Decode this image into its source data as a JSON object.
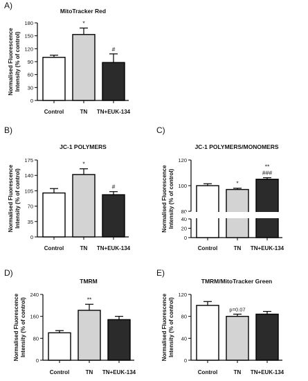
{
  "chart_data": [
    {
      "panel_label": "A)",
      "title": "MitoTracker Red",
      "type": "bar",
      "ylabel_lines": [
        "Normalised Fluorescence",
        "Intensity (% of control)"
      ],
      "categories": [
        "Control",
        "TN",
        "TN+EUK-134"
      ],
      "values": [
        100,
        153,
        88
      ],
      "errors": [
        5,
        15,
        20
      ],
      "annotations": [
        "",
        "*",
        "#"
      ],
      "ylim": [
        0,
        180
      ],
      "yticks": [
        0,
        30,
        60,
        90,
        120,
        150,
        180
      ],
      "colors": [
        "#ffffff",
        "#d3d3d3",
        "#2b2b2b"
      ]
    },
    {
      "panel_label": "B)",
      "title": "JC-1 POLYMERS",
      "type": "bar",
      "ylabel_lines": [
        "Normalised Fluorescence",
        "Intensity (% of control)"
      ],
      "categories": [
        "Control",
        "TN",
        "TN+EUK-134"
      ],
      "values": [
        100,
        142,
        96
      ],
      "errors": [
        10,
        13,
        7
      ],
      "annotations": [
        "",
        "*",
        "#"
      ],
      "ylim": [
        0,
        175
      ],
      "yticks": [
        0,
        35,
        70,
        105,
        140,
        175
      ],
      "colors": [
        "#ffffff",
        "#d3d3d3",
        "#2b2b2b"
      ]
    },
    {
      "panel_label": "C)",
      "title": "JC-1 POLYMERS/MONOMERS",
      "type": "bar",
      "ylabel_lines": [
        "Normalised Fluorescence",
        "Intensity (% of control)"
      ],
      "categories": [
        "Control",
        "TN",
        "TN+EUK-134"
      ],
      "values": [
        100,
        97,
        105
      ],
      "errors": [
        1.5,
        1,
        1.2
      ],
      "annotations": [
        "",
        "*",
        "**\n###"
      ],
      "axis_break": true,
      "ylim_lower": [
        0,
        40
      ],
      "yticks_lower": [
        0,
        20,
        40
      ],
      "ylim_upper": [
        80,
        120
      ],
      "yticks_upper": [
        80,
        100,
        120
      ],
      "colors": [
        "#ffffff",
        "#d3d3d3",
        "#2b2b2b"
      ]
    },
    {
      "panel_label": "D)",
      "title": "TMRM",
      "type": "bar",
      "ylabel_lines": [
        "Normalised Fluorescence",
        "Intensity (% of control)"
      ],
      "categories": [
        "Control",
        "TN",
        "TN+EUK-134"
      ],
      "values": [
        100,
        182,
        148
      ],
      "errors": [
        8,
        22,
        12
      ],
      "annotations": [
        "",
        "**",
        ""
      ],
      "ylim": [
        0,
        240
      ],
      "yticks": [
        0,
        80,
        160,
        240
      ],
      "colors": [
        "#ffffff",
        "#d3d3d3",
        "#2b2b2b"
      ]
    },
    {
      "panel_label": "E)",
      "title": "TMRM/MitoTracker Green",
      "type": "bar",
      "ylabel_lines": [
        "Normalised Fluorescence",
        "Intensity (% of control)"
      ],
      "categories": [
        "Control",
        "TN",
        "TN+EUK-134"
      ],
      "values": [
        100,
        80,
        84
      ],
      "errors": [
        7,
        4,
        5
      ],
      "annotations": [
        "",
        "p=0.07",
        ""
      ],
      "ylim": [
        0,
        120
      ],
      "yticks": [
        0,
        40,
        80,
        120
      ],
      "colors": [
        "#ffffff",
        "#d3d3d3",
        "#2b2b2b"
      ]
    }
  ]
}
